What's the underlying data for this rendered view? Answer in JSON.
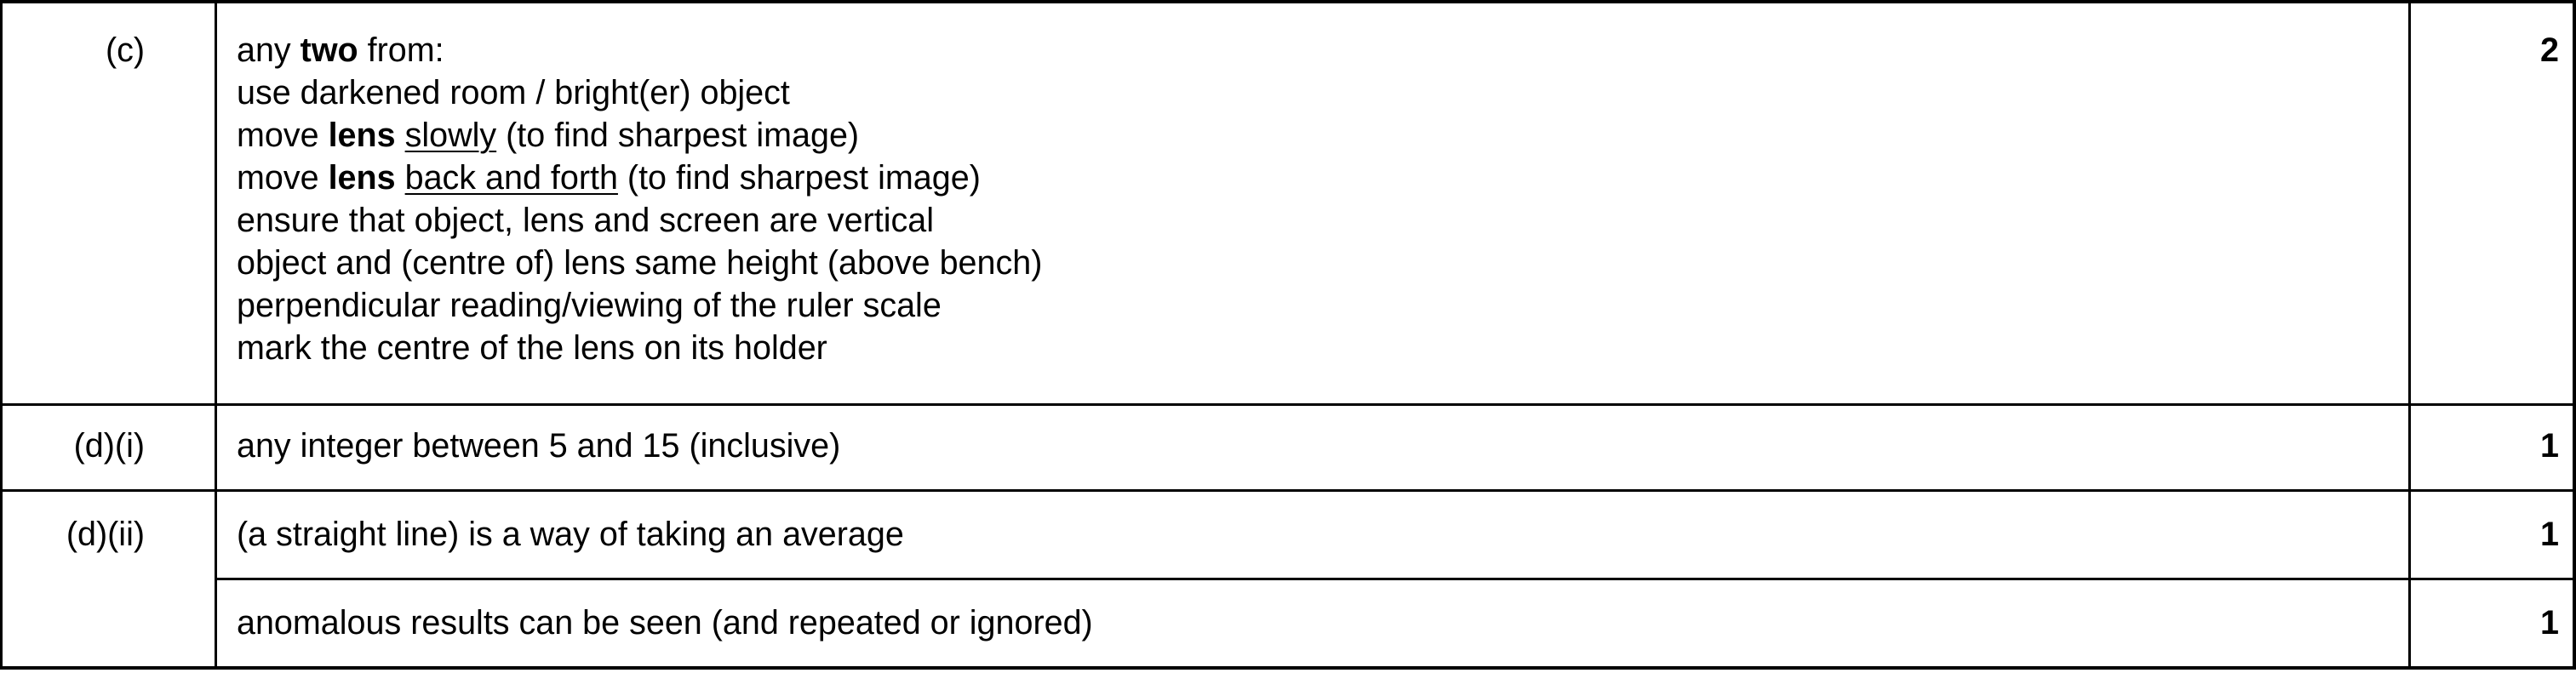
{
  "rows": [
    {
      "question": "(c)",
      "mark": "2",
      "lines": [
        [
          {
            "t": "any "
          },
          {
            "t": "two",
            "b": true
          },
          {
            "t": " from:"
          }
        ],
        [
          {
            "t": "use darkened room / bright(er) object"
          }
        ],
        [
          {
            "t": "move "
          },
          {
            "t": "lens",
            "b": true
          },
          {
            "t": " "
          },
          {
            "t": "slowly",
            "u": true
          },
          {
            "t": " (to find sharpest image)"
          }
        ],
        [
          {
            "t": "move "
          },
          {
            "t": "lens",
            "b": true
          },
          {
            "t": " "
          },
          {
            "t": "back and forth",
            "u": true
          },
          {
            "t": " (to find sharpest image)"
          }
        ],
        [
          {
            "t": "ensure that object, lens and screen are vertical"
          }
        ],
        [
          {
            "t": "object and (centre of) lens same height (above bench)"
          }
        ],
        [
          {
            "t": "perpendicular reading/viewing of the ruler scale"
          }
        ],
        [
          {
            "t": "mark the centre of the lens on its holder"
          }
        ]
      ]
    },
    {
      "question": "(d)(i)",
      "mark": "1",
      "lines": [
        [
          {
            "t": "any integer between 5 and 15 (inclusive)"
          }
        ]
      ]
    },
    {
      "question": "(d)(ii)",
      "mark": "1",
      "lines": [
        [
          {
            "t": "(a straight line) is a way of taking an average"
          }
        ]
      ]
    },
    {
      "question": "",
      "mark": "1",
      "lines": [
        [
          {
            "t": "anomalous results can be seen (and repeated or ignored)"
          }
        ]
      ]
    }
  ]
}
